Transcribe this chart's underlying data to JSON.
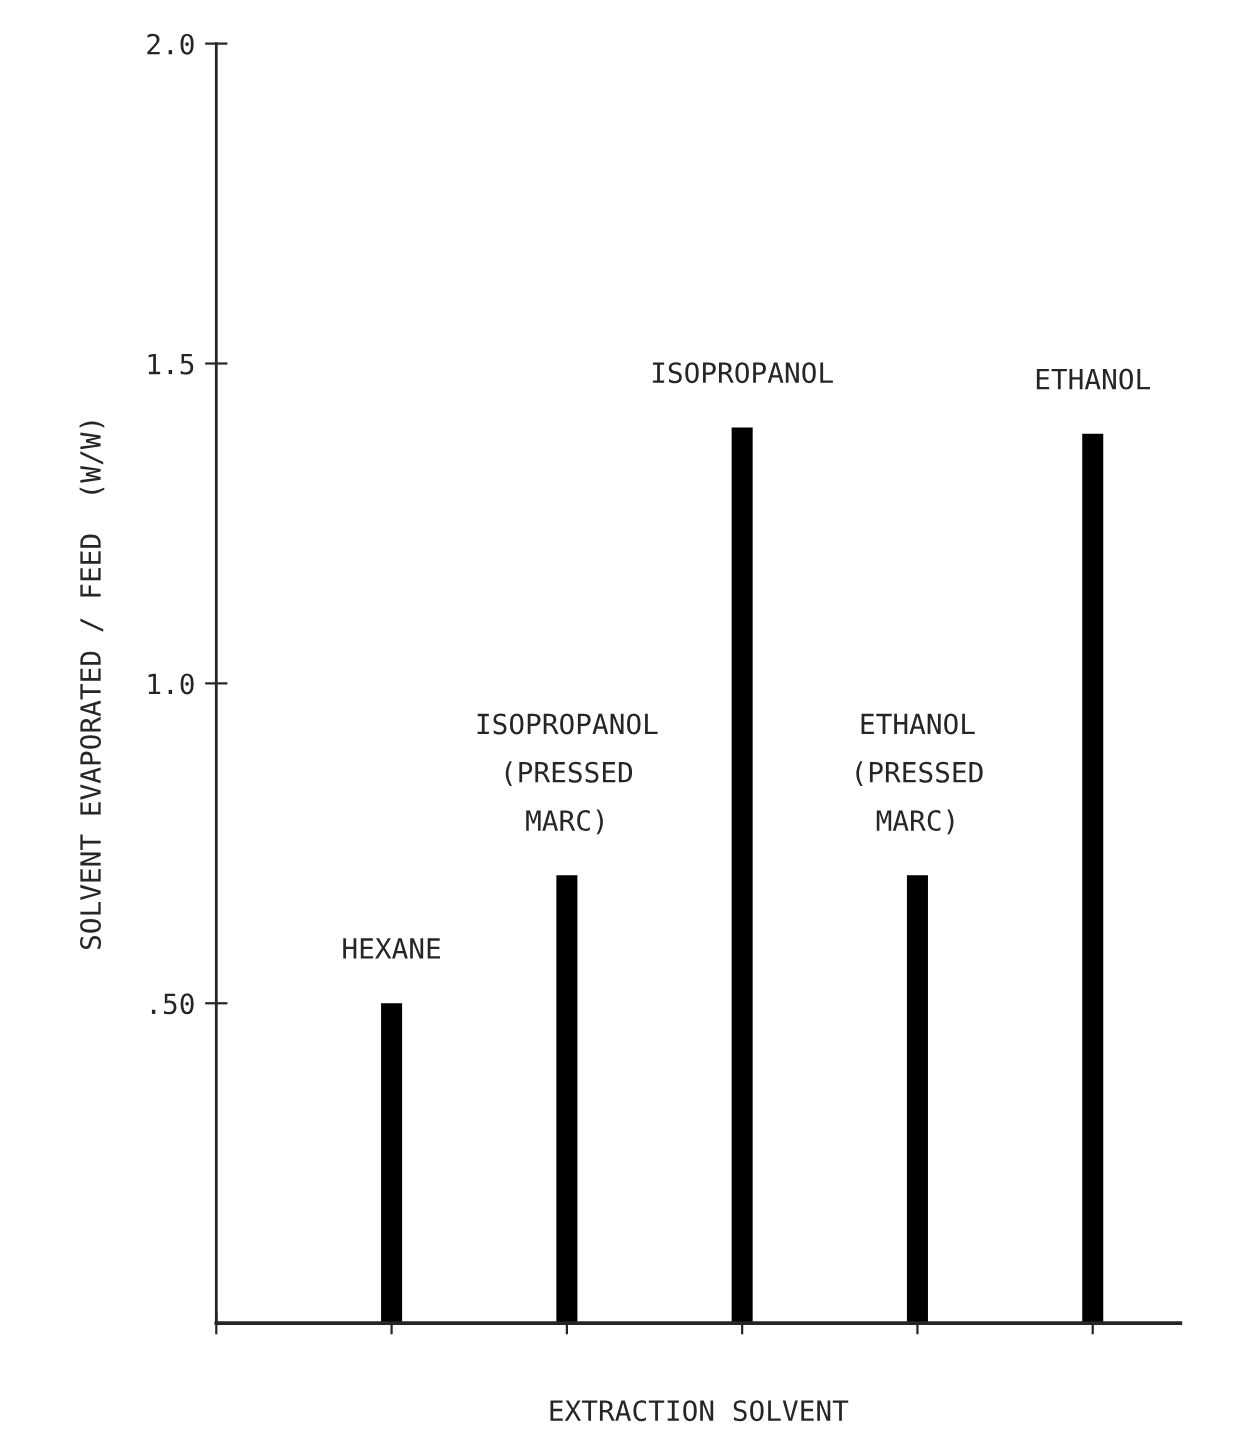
{
  "chart_data": {
    "type": "bar",
    "xlabel": "EXTRACTION SOLVENT",
    "ylabel": "SOLVENT EVAPORATED / FEED  (W/W)",
    "categories": [
      "HEXANE",
      "ISOPROPANOL\n(PRESSED\nMARC)",
      "ISOPROPANOL",
      "ETHANOL\n(PRESSED\nMARC)",
      "ETHANOL"
    ],
    "values": [
      0.5,
      0.7,
      1.4,
      0.7,
      1.39
    ],
    "color": "#000000",
    "ylim": [
      0,
      2.0
    ],
    "yticks": [
      {
        "value": 0.5,
        "label": ".50"
      },
      {
        "value": 1.0,
        "label": "1.0"
      },
      {
        "value": 1.5,
        "label": "1.5"
      },
      {
        "value": 2.0,
        "label": "2.0"
      }
    ],
    "tick_labels": "y",
    "grid": false
  }
}
